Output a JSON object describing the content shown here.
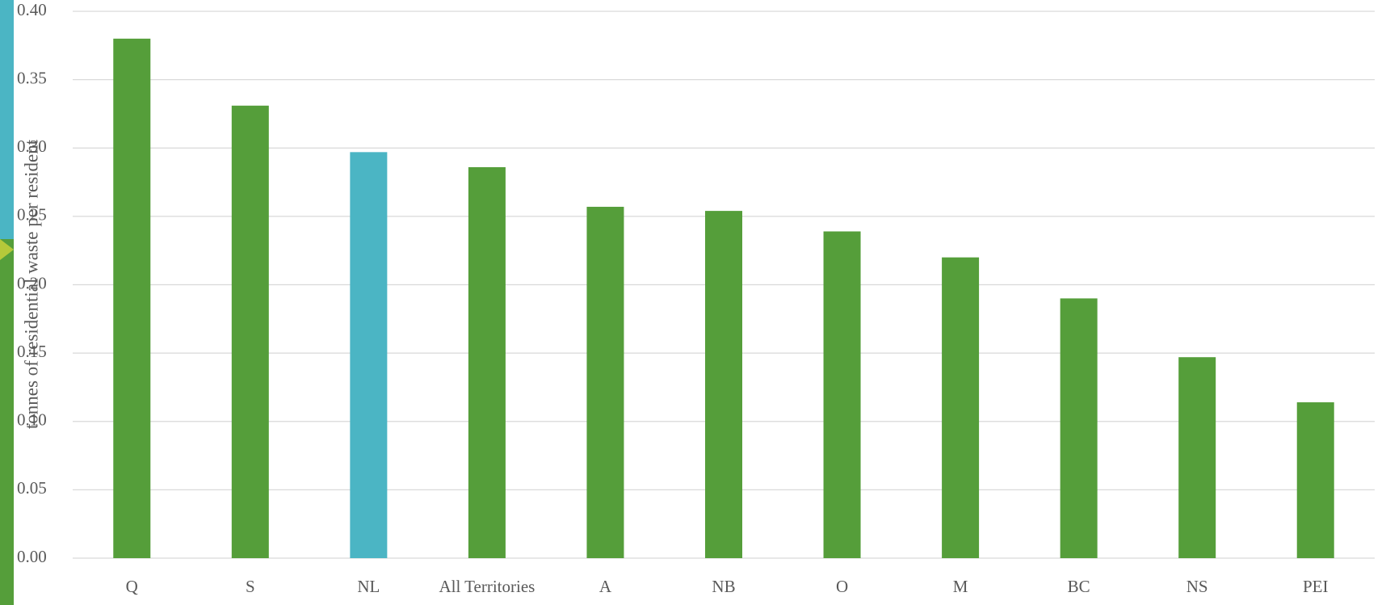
{
  "chart_data": {
    "type": "bar",
    "y_axis_label": "tonnes of residential waste per resident",
    "categories": [
      "Q",
      "S",
      "NL",
      "All Territories",
      "A",
      "NB",
      "O",
      "M",
      "BC",
      "NS",
      "PEI"
    ],
    "values": [
      0.38,
      0.331,
      0.297,
      0.286,
      0.257,
      0.254,
      0.239,
      0.22,
      0.19,
      0.147,
      0.114
    ],
    "colors": [
      "#559e3a",
      "#559e3a",
      "#4bb5c4",
      "#559e3a",
      "#559e3a",
      "#559e3a",
      "#559e3a",
      "#559e3a",
      "#559e3a",
      "#559e3a",
      "#559e3a"
    ],
    "ylim": [
      0,
      0.4
    ],
    "yticks": [
      {
        "value": 0,
        "label": "0.00"
      },
      {
        "value": 0.05,
        "label": "0.05"
      },
      {
        "value": 0.1,
        "label": "0.10"
      },
      {
        "value": 0.15,
        "label": "0.15"
      },
      {
        "value": 0.2,
        "label": "0.20"
      },
      {
        "value": 0.25,
        "label": "0.25"
      },
      {
        "value": 0.3,
        "label": "0.30"
      },
      {
        "value": 0.35,
        "label": "0.35"
      },
      {
        "value": 0.4,
        "label": "0.40"
      }
    ],
    "grid": true
  }
}
